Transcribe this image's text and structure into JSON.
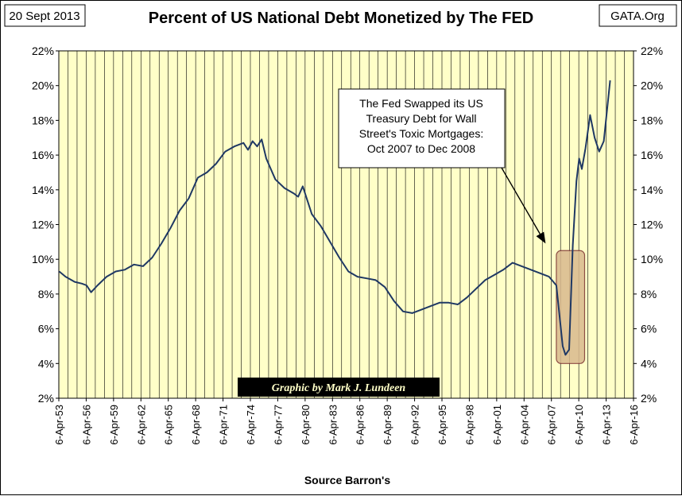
{
  "header": {
    "date_box": "20 Sept 2013",
    "source_box": "GATA.Org"
  },
  "credit": "Graphic by Mark J. Lundeen",
  "callout": {
    "lines": [
      "The Fed Swapped its US",
      "Treasury Debt for Wall",
      "Street's Toxic Mortgages:",
      "Oct 2007 to Dec 2008"
    ]
  },
  "colors": {
    "plot_background": "#ffffc8",
    "series_line": "#1f3864",
    "highlight_fill": "#d9b98e",
    "highlight_border": "#7a2e2e",
    "credit_background": "#000000",
    "credit_text": "#ffffc8"
  },
  "chart_data": {
    "type": "line",
    "title": "Percent of US National Debt Monetized by The FED",
    "xlabel": "Source Barron's",
    "ylabel": "",
    "x_tick_labels": [
      "6-Apr-53",
      "6-Apr-56",
      "6-Apr-59",
      "6-Apr-62",
      "6-Apr-65",
      "6-Apr-68",
      "6-Apr-71",
      "6-Apr-74",
      "6-Apr-77",
      "6-Apr-80",
      "6-Apr-83",
      "6-Apr-86",
      "6-Apr-89",
      "6-Apr-92",
      "6-Apr-95",
      "6-Apr-98",
      "6-Apr-01",
      "6-Apr-04",
      "6-Apr-07",
      "6-Apr-10",
      "6-Apr-13",
      "6-Apr-16"
    ],
    "xlim": [
      1953.26,
      2016.26
    ],
    "y_tick_labels": [
      "2%",
      "4%",
      "6%",
      "8%",
      "10%",
      "12%",
      "14%",
      "16%",
      "18%",
      "20%",
      "22%"
    ],
    "ylim": [
      2,
      22
    ],
    "y_axis_right_duplicate": true,
    "grid": "vertical lines at each year tick",
    "highlight_box": {
      "x_start": 2007.8,
      "x_end": 2010.9,
      "y_start": 4.0,
      "y_end": 10.5
    },
    "series": [
      {
        "x": [
          1953.3,
          1954.0,
          1955.0,
          1955.8,
          1956.3,
          1956.8,
          1957.5,
          1958.5,
          1959.5,
          1960.5,
          1961.5,
          1962.5,
          1963.5,
          1964.5,
          1965.5,
          1966.5,
          1967.5,
          1968.5,
          1969.5,
          1970.5,
          1971.5,
          1972.5,
          1973.5,
          1974.0,
          1974.5,
          1975.0,
          1975.5,
          1976.0,
          1976.5,
          1977.0,
          1978.0,
          1979.0,
          1979.5,
          1980.0,
          1980.5,
          1981.0,
          1982.0,
          1983.0,
          1984.0,
          1985.0,
          1986.0,
          1987.0,
          1988.0,
          1989.0,
          1990.0,
          1991.0,
          1992.0,
          1993.0,
          1994.0,
          1995.0,
          1996.0,
          1997.0,
          1998.0,
          1999.0,
          2000.0,
          2001.0,
          2002.0,
          2003.0,
          2004.0,
          2005.0,
          2006.0,
          2007.0,
          2007.8,
          2008.2,
          2008.5,
          2008.8,
          2009.2,
          2009.6,
          2010.0,
          2010.3,
          2010.6,
          2011.0,
          2011.5,
          2012.0,
          2012.5,
          2013.0,
          2013.7
        ],
        "values": [
          9.3,
          9.0,
          8.7,
          8.6,
          8.5,
          8.1,
          8.5,
          9.0,
          9.3,
          9.4,
          9.7,
          9.6,
          10.1,
          10.9,
          11.8,
          12.8,
          13.5,
          14.7,
          15.0,
          15.5,
          16.2,
          16.5,
          16.7,
          16.3,
          16.8,
          16.5,
          16.9,
          15.8,
          15.2,
          14.6,
          14.1,
          13.8,
          13.6,
          14.2,
          13.4,
          12.6,
          11.9,
          11.0,
          10.1,
          9.3,
          9.0,
          8.9,
          8.8,
          8.4,
          7.6,
          7.0,
          6.9,
          7.1,
          7.3,
          7.5,
          7.5,
          7.4,
          7.8,
          8.3,
          8.8,
          9.1,
          9.4,
          9.8,
          9.6,
          9.4,
          9.2,
          9.0,
          8.5,
          6.5,
          5.0,
          4.5,
          4.8,
          10.8,
          14.5,
          15.8,
          15.2,
          16.4,
          18.3,
          17.0,
          16.2,
          16.8,
          20.3
        ]
      }
    ]
  }
}
